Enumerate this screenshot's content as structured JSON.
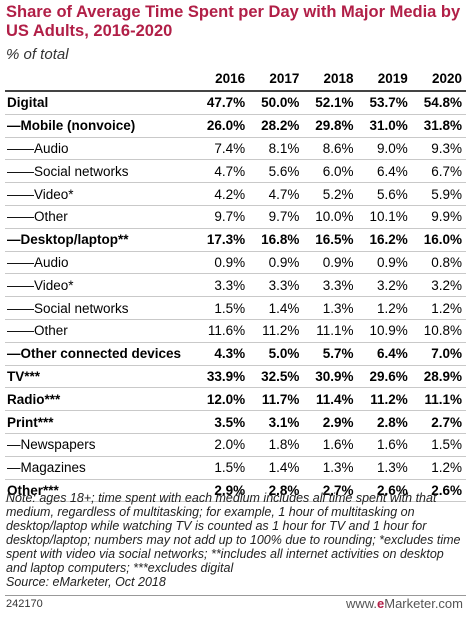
{
  "chart_data": {
    "type": "table",
    "title": "Share of Average Time Spent per Day with Major Media by US Adults, 2016-2020",
    "subtitle": "% of total",
    "columns": [
      "2016",
      "2017",
      "2018",
      "2019",
      "2020"
    ],
    "rows": [
      {
        "label": "Digital",
        "values": [
          "47.7%",
          "50.0%",
          "52.1%",
          "53.7%",
          "54.8%"
        ],
        "bold": true
      },
      {
        "label": "—Mobile (nonvoice)",
        "values": [
          "26.0%",
          "28.2%",
          "29.8%",
          "31.0%",
          "31.8%"
        ],
        "bold": true
      },
      {
        "label": "——Audio",
        "values": [
          "7.4%",
          "8.1%",
          "8.6%",
          "9.0%",
          "9.3%"
        ],
        "bold": false
      },
      {
        "label": "——Social networks",
        "values": [
          "4.7%",
          "5.6%",
          "6.0%",
          "6.4%",
          "6.7%"
        ],
        "bold": false
      },
      {
        "label": "——Video*",
        "values": [
          "4.2%",
          "4.7%",
          "5.2%",
          "5.6%",
          "5.9%"
        ],
        "bold": false
      },
      {
        "label": "——Other",
        "values": [
          "9.7%",
          "9.7%",
          "10.0%",
          "10.1%",
          "9.9%"
        ],
        "bold": false
      },
      {
        "label": "—Desktop/laptop**",
        "values": [
          "17.3%",
          "16.8%",
          "16.5%",
          "16.2%",
          "16.0%"
        ],
        "bold": true
      },
      {
        "label": "——Audio",
        "values": [
          "0.9%",
          "0.9%",
          "0.9%",
          "0.9%",
          "0.8%"
        ],
        "bold": false
      },
      {
        "label": "——Video*",
        "values": [
          "3.3%",
          "3.3%",
          "3.3%",
          "3.2%",
          "3.2%"
        ],
        "bold": false
      },
      {
        "label": "——Social networks",
        "values": [
          "1.5%",
          "1.4%",
          "1.3%",
          "1.2%",
          "1.2%"
        ],
        "bold": false
      },
      {
        "label": "——Other",
        "values": [
          "11.6%",
          "11.2%",
          "11.1%",
          "10.9%",
          "10.8%"
        ],
        "bold": false
      },
      {
        "label": "—Other connected devices",
        "values": [
          "4.3%",
          "5.0%",
          "5.7%",
          "6.4%",
          "7.0%"
        ],
        "bold": true
      },
      {
        "label": "TV***",
        "values": [
          "33.9%",
          "32.5%",
          "30.9%",
          "29.6%",
          "28.9%"
        ],
        "bold": true
      },
      {
        "label": "Radio***",
        "values": [
          "12.0%",
          "11.7%",
          "11.4%",
          "11.2%",
          "11.1%"
        ],
        "bold": true
      },
      {
        "label": "Print***",
        "values": [
          "3.5%",
          "3.1%",
          "2.9%",
          "2.8%",
          "2.7%"
        ],
        "bold": true
      },
      {
        "label": "—Newspapers",
        "values": [
          "2.0%",
          "1.8%",
          "1.6%",
          "1.6%",
          "1.5%"
        ],
        "bold": false
      },
      {
        "label": "—Magazines",
        "values": [
          "1.5%",
          "1.4%",
          "1.3%",
          "1.3%",
          "1.2%"
        ],
        "bold": false
      },
      {
        "label": "Other***",
        "values": [
          "2.9%",
          "2.8%",
          "2.7%",
          "2.6%",
          "2.6%"
        ],
        "bold": true
      }
    ],
    "note": "Note: ages 18+; time spent with each medium includes all time spent with that medium, regardless of multitasking; for example, 1 hour of multitasking on desktop/laptop while watching TV is counted as 1 hour for TV and 1 hour for desktop/laptop; numbers may not add up to 100% due to rounding; *excludes time spent with video via social networks; **includes all internet activities on desktop and laptop computers; ***excludes digital",
    "source": "Source: eMarketer, Oct 2018"
  },
  "footer": {
    "chart_id": "242170",
    "brand_prefix": "www.",
    "brand_e": "e",
    "brand_rest": "Marketer.com"
  },
  "colors": {
    "title": "#b11f47",
    "brand": "#b11f47"
  }
}
